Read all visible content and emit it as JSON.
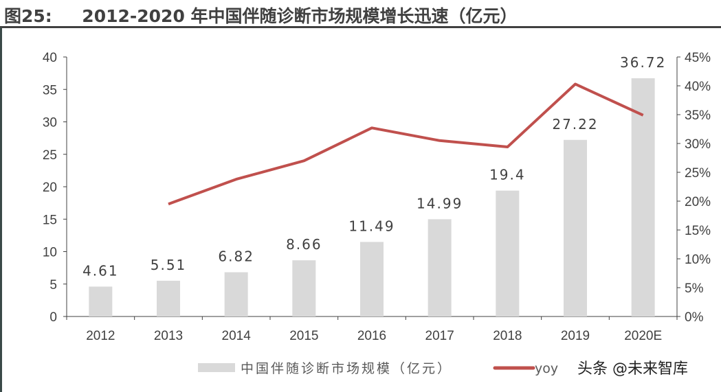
{
  "title": "图25:     2012-2020 年中国伴随诊断市场规模增长迅速（亿元）",
  "watermark": "头条 @未来智库",
  "chart_data": {
    "type": "bar+line",
    "categories": [
      "2012",
      "2013",
      "2014",
      "2015",
      "2016",
      "2017",
      "2018",
      "2019",
      "2020E"
    ],
    "series": [
      {
        "name": "中国伴随诊断市场规模（亿元）",
        "type": "bar",
        "axis": "left",
        "color": "#d9d9d9",
        "values": [
          4.61,
          5.51,
          6.82,
          8.66,
          11.49,
          14.99,
          19.4,
          27.22,
          36.72
        ],
        "labels": [
          "4.61",
          "5.51",
          "6.82",
          "8.66",
          "11.49",
          "14.99",
          "19.4",
          "27.22",
          "36.72"
        ]
      },
      {
        "name": "yoy",
        "type": "line",
        "axis": "right",
        "color": "#c0504d",
        "values": [
          null,
          19.5,
          23.8,
          27.0,
          32.7,
          30.5,
          29.4,
          40.3,
          34.9
        ]
      }
    ],
    "left_axis": {
      "range": [
        0,
        40
      ],
      "ticks": [
        "0",
        "5",
        "10",
        "15",
        "20",
        "25",
        "30",
        "35",
        "40"
      ]
    },
    "right_axis": {
      "range": [
        0,
        45
      ],
      "ticks": [
        "0%",
        "5%",
        "10%",
        "15%",
        "20%",
        "25%",
        "30%",
        "35%",
        "40%",
        "45%"
      ]
    },
    "grid": false,
    "legend_placement": "bottom"
  }
}
